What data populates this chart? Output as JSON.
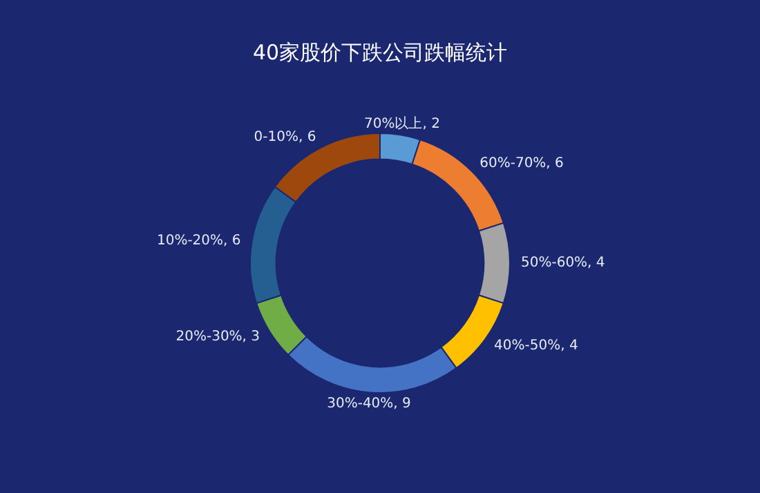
{
  "chart_data": {
    "type": "donut",
    "title": "40家股价下跌公司跌幅统计",
    "categories": [
      "70%以上",
      "60%-70%",
      "50%-60%",
      "40%-50%",
      "30%-40%",
      "20%-30%",
      "10%-20%",
      "0-10%"
    ],
    "values": [
      2,
      6,
      4,
      4,
      9,
      3,
      6,
      6
    ],
    "value_labels": [
      ", 2",
      ", 6",
      ", 4",
      ", 4",
      ", 9",
      ", 3",
      ", 6",
      ", 6"
    ],
    "colors": [
      "#5b9bd5",
      "#ed7d31",
      "#a5a5a5",
      "#ffc000",
      "#4472c4",
      "#70ad47",
      "#255e91",
      "#9e480e"
    ],
    "legend": false
  }
}
